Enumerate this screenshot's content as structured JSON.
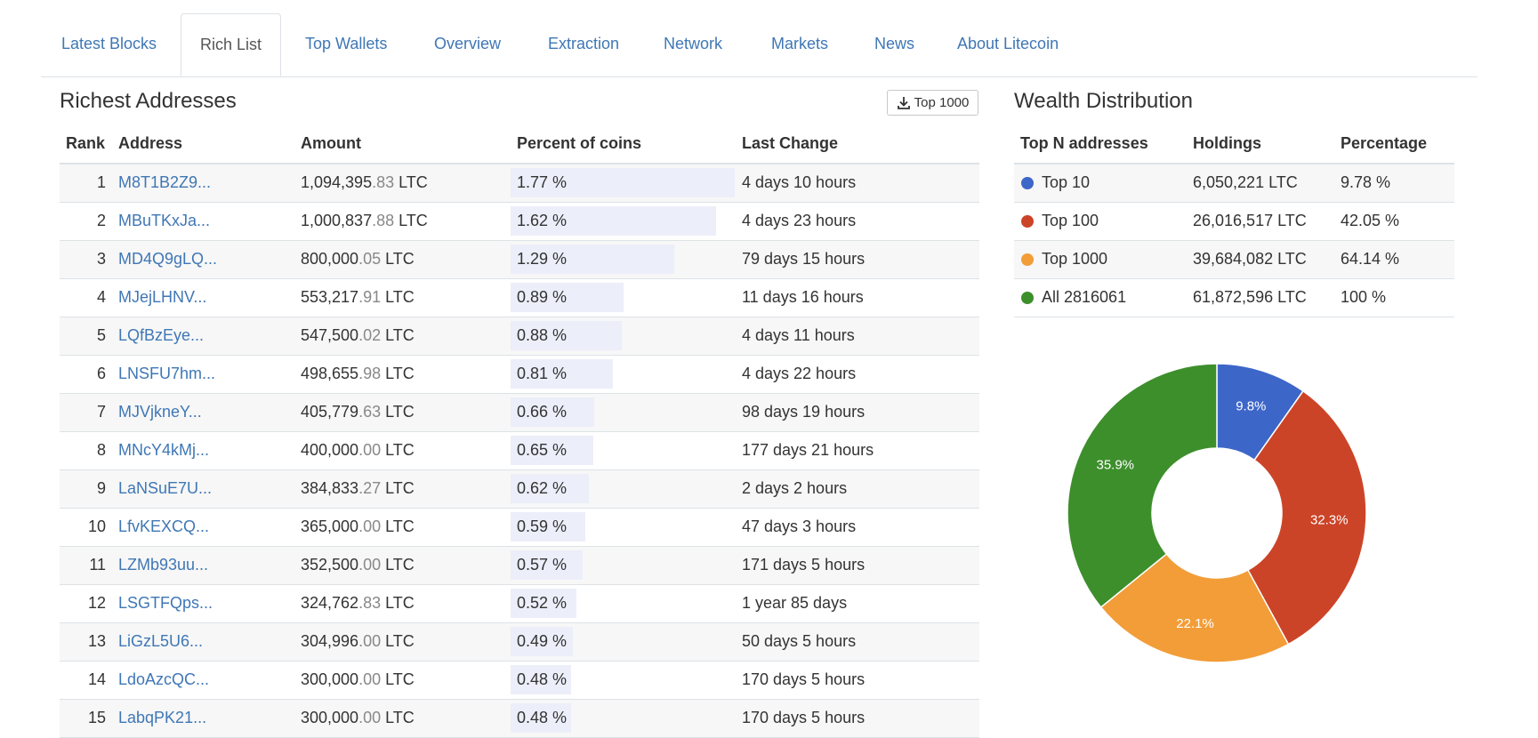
{
  "tabs": [
    "Latest Blocks",
    "Rich List",
    "Top Wallets",
    "Overview",
    "Extraction",
    "Network",
    "Markets",
    "News",
    "About Litecoin"
  ],
  "rich": {
    "title": "Richest Addresses",
    "download_label": "Top 1000",
    "headers": {
      "rank": "Rank",
      "address": "Address",
      "amount": "Amount",
      "percent": "Percent of coins",
      "last_change": "Last Change"
    },
    "rows": [
      {
        "rank": "1",
        "address": "M8T1B2Z9...",
        "amount_int": "1,094,395",
        "amount_frac": ".83",
        "unit": " LTC",
        "percent": "1.77 %",
        "pct_value": 1.77,
        "last_change": "4 days 10 hours"
      },
      {
        "rank": "2",
        "address": "MBuTKxJa...",
        "amount_int": "1,000,837",
        "amount_frac": ".88",
        "unit": " LTC",
        "percent": "1.62 %",
        "pct_value": 1.62,
        "last_change": "4 days 23 hours"
      },
      {
        "rank": "3",
        "address": "MD4Q9gLQ...",
        "amount_int": "800,000",
        "amount_frac": ".05",
        "unit": " LTC",
        "percent": "1.29 %",
        "pct_value": 1.29,
        "last_change": "79 days 15 hours"
      },
      {
        "rank": "4",
        "address": "MJejLHNV...",
        "amount_int": "553,217",
        "amount_frac": ".91",
        "unit": " LTC",
        "percent": "0.89 %",
        "pct_value": 0.89,
        "last_change": "11 days 16 hours"
      },
      {
        "rank": "5",
        "address": "LQfBzEye...",
        "amount_int": "547,500",
        "amount_frac": ".02",
        "unit": " LTC",
        "percent": "0.88 %",
        "pct_value": 0.88,
        "last_change": "4 days 11 hours"
      },
      {
        "rank": "6",
        "address": "LNSFU7hm...",
        "amount_int": "498,655",
        "amount_frac": ".98",
        "unit": " LTC",
        "percent": "0.81 %",
        "pct_value": 0.81,
        "last_change": "4 days 22 hours"
      },
      {
        "rank": "7",
        "address": "MJVjkneY...",
        "amount_int": "405,779",
        "amount_frac": ".63",
        "unit": " LTC",
        "percent": "0.66 %",
        "pct_value": 0.66,
        "last_change": "98 days 19 hours"
      },
      {
        "rank": "8",
        "address": "MNcY4kMj...",
        "amount_int": "400,000",
        "amount_frac": ".00",
        "unit": " LTC",
        "percent": "0.65 %",
        "pct_value": 0.65,
        "last_change": "177 days 21 hours"
      },
      {
        "rank": "9",
        "address": "LaNSuE7U...",
        "amount_int": "384,833",
        "amount_frac": ".27",
        "unit": " LTC",
        "percent": "0.62 %",
        "pct_value": 0.62,
        "last_change": "2 days 2 hours"
      },
      {
        "rank": "10",
        "address": "LfvKEXCQ...",
        "amount_int": "365,000",
        "amount_frac": ".00",
        "unit": " LTC",
        "percent": "0.59 %",
        "pct_value": 0.59,
        "last_change": "47 days 3 hours"
      },
      {
        "rank": "11",
        "address": "LZMb93uu...",
        "amount_int": "352,500",
        "amount_frac": ".00",
        "unit": " LTC",
        "percent": "0.57 %",
        "pct_value": 0.57,
        "last_change": "171 days 5 hours"
      },
      {
        "rank": "12",
        "address": "LSGTFQps...",
        "amount_int": "324,762",
        "amount_frac": ".83",
        "unit": " LTC",
        "percent": "0.52 %",
        "pct_value": 0.52,
        "last_change": "1 year 85 days"
      },
      {
        "rank": "13",
        "address": "LiGzL5U6...",
        "amount_int": "304,996",
        "amount_frac": ".00",
        "unit": " LTC",
        "percent": "0.49 %",
        "pct_value": 0.49,
        "last_change": "50 days 5 hours"
      },
      {
        "rank": "14",
        "address": "LdoAzcQC...",
        "amount_int": "300,000",
        "amount_frac": ".00",
        "unit": " LTC",
        "percent": "0.48 %",
        "pct_value": 0.48,
        "last_change": "170 days 5 hours"
      },
      {
        "rank": "15",
        "address": "LabqPK21...",
        "amount_int": "300,000",
        "amount_frac": ".00",
        "unit": " LTC",
        "percent": "0.48 %",
        "pct_value": 0.48,
        "last_change": "170 days 5 hours"
      }
    ]
  },
  "wealth": {
    "title": "Wealth Distribution",
    "headers": {
      "top": "Top N addresses",
      "holdings": "Holdings",
      "percentage": "Percentage"
    },
    "rows": [
      {
        "name": "Top 10",
        "holdings": "6,050,221 LTC",
        "percentage": "9.78 %",
        "color": "#3d66c9"
      },
      {
        "name": "Top 100",
        "holdings": "26,016,517 LTC",
        "percentage": "42.05 %",
        "color": "#cc4428"
      },
      {
        "name": "Top 1000",
        "holdings": "39,684,082 LTC",
        "percentage": "64.14 %",
        "color": "#f29d38"
      },
      {
        "name": "All 2816061",
        "holdings": "61,872,596 LTC",
        "percentage": "100 %",
        "color": "#3d8f2c"
      }
    ]
  },
  "chart_data": {
    "type": "pie",
    "donut": true,
    "categories": [
      "Top 10",
      "Top 100",
      "Top 1000",
      "All 2816061"
    ],
    "values": [
      9.8,
      32.3,
      22.1,
      35.9
    ],
    "labels": [
      "9.8%",
      "32.3%",
      "22.1%",
      "35.9%"
    ],
    "colors": [
      "#3d66c9",
      "#cc4428",
      "#f29d38",
      "#3d8f2c"
    ]
  }
}
